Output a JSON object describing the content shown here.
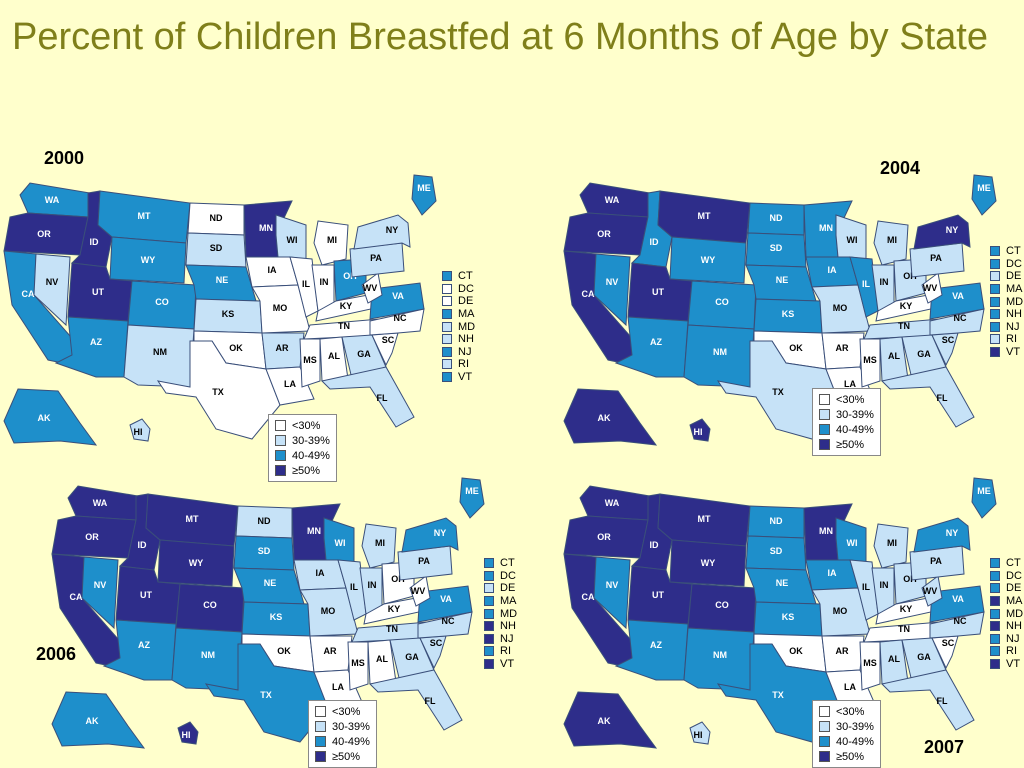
{
  "title": "Percent of Children Breastfed at 6 Months of Age by State",
  "colors": {
    "lt30": "#ffffff",
    "c30_39": "#c6e2f7",
    "c40_49": "#1e8fcb",
    "ge50": "#2e2d8a",
    "border": "#3a4f7a",
    "background": "#ffffcc",
    "title": "#7f7f1a"
  },
  "legend": {
    "items": [
      {
        "label": "<30%",
        "key": "lt30"
      },
      {
        "label": "30-39%",
        "key": "c30_39"
      },
      {
        "label": "40-49%",
        "key": "c40_49"
      },
      {
        "label": "≥50%",
        "key": "ge50"
      }
    ]
  },
  "small_state_labels": [
    "CT",
    "DC",
    "DE",
    "MA",
    "MD",
    "NH",
    "NJ",
    "RI",
    "VT"
  ],
  "state_labels": [
    "WA",
    "OR",
    "CA",
    "NV",
    "ID",
    "MT",
    "WY",
    "UT",
    "AZ",
    "CO",
    "NM",
    "ND",
    "SD",
    "NE",
    "KS",
    "OK",
    "TX",
    "MN",
    "IA",
    "MO",
    "AR",
    "LA",
    "WI",
    "IL",
    "MI",
    "IN",
    "OH",
    "KY",
    "TN",
    "MS",
    "AL",
    "GA",
    "FL",
    "SC",
    "NC",
    "VA",
    "WV",
    "PA",
    "NY",
    "ME",
    "AK",
    "HI"
  ],
  "panels": [
    {
      "year": "2000",
      "states": {
        "WA": "c40_49",
        "OR": "ge50",
        "CA": "c40_49",
        "NV": "c30_39",
        "ID": "ge50",
        "MT": "c40_49",
        "WY": "c40_49",
        "UT": "ge50",
        "AZ": "c40_49",
        "CO": "c40_49",
        "NM": "c30_39",
        "ND": "lt30",
        "SD": "c30_39",
        "NE": "c40_49",
        "KS": "c30_39",
        "OK": "lt30",
        "TX": "lt30",
        "MN": "ge50",
        "IA": "lt30",
        "MO": "lt30",
        "AR": "c30_39",
        "LA": "lt30",
        "WI": "c30_39",
        "IL": "lt30",
        "MI": "lt30",
        "IN": "lt30",
        "OH": "c40_49",
        "KY": "lt30",
        "TN": "lt30",
        "MS": "lt30",
        "AL": "lt30",
        "GA": "c30_39",
        "FL": "c30_39",
        "SC": "lt30",
        "NC": "lt30",
        "VA": "c40_49",
        "WV": "lt30",
        "PA": "c30_39",
        "NY": "c30_39",
        "ME": "c40_49",
        "AK": "c40_49",
        "HI": "c30_39"
      },
      "small": {
        "CT": "c40_49",
        "DC": "lt30",
        "DE": "lt30",
        "MA": "c40_49",
        "MD": "c30_39",
        "NH": "c30_39",
        "NJ": "c40_49",
        "RI": "c30_39",
        "VT": "c40_49"
      }
    },
    {
      "year": "2004",
      "states": {
        "WA": "ge50",
        "OR": "ge50",
        "CA": "ge50",
        "NV": "c40_49",
        "ID": "c40_49",
        "MT": "ge50",
        "WY": "c40_49",
        "UT": "ge50",
        "AZ": "c40_49",
        "CO": "c40_49",
        "NM": "c40_49",
        "ND": "c40_49",
        "SD": "c40_49",
        "NE": "c40_49",
        "KS": "c40_49",
        "OK": "lt30",
        "TX": "c30_39",
        "MN": "c40_49",
        "IA": "c40_49",
        "MO": "c30_39",
        "AR": "lt30",
        "LA": "lt30",
        "WI": "c30_39",
        "IL": "c40_49",
        "MI": "c30_39",
        "IN": "c30_39",
        "OH": "c30_39",
        "KY": "lt30",
        "TN": "c30_39",
        "MS": "lt30",
        "AL": "c30_39",
        "GA": "c30_39",
        "FL": "c30_39",
        "SC": "c30_39",
        "NC": "c30_39",
        "VA": "c40_49",
        "WV": "lt30",
        "PA": "c30_39",
        "NY": "ge50",
        "ME": "c40_49",
        "AK": "ge50",
        "HI": "ge50"
      },
      "small": {
        "CT": "c40_49",
        "DC": "c40_49",
        "DE": "c30_39",
        "MA": "c40_49",
        "MD": "c40_49",
        "NH": "c40_49",
        "NJ": "c40_49",
        "RI": "c30_39",
        "VT": "ge50"
      }
    },
    {
      "year": "2006",
      "states": {
        "WA": "ge50",
        "OR": "ge50",
        "CA": "ge50",
        "NV": "c40_49",
        "ID": "ge50",
        "MT": "ge50",
        "WY": "ge50",
        "UT": "ge50",
        "AZ": "c40_49",
        "CO": "ge50",
        "NM": "c40_49",
        "ND": "c30_39",
        "SD": "c40_49",
        "NE": "c40_49",
        "KS": "c40_49",
        "OK": "lt30",
        "TX": "c40_49",
        "MN": "ge50",
        "IA": "c30_39",
        "MO": "c30_39",
        "AR": "lt30",
        "LA": "lt30",
        "WI": "c40_49",
        "IL": "c30_39",
        "MI": "c30_39",
        "IN": "c30_39",
        "OH": "lt30",
        "KY": "lt30",
        "TN": "c30_39",
        "MS": "lt30",
        "AL": "lt30",
        "GA": "c30_39",
        "FL": "c30_39",
        "SC": "c30_39",
        "NC": "c30_39",
        "VA": "c40_49",
        "WV": "lt30",
        "PA": "c30_39",
        "NY": "c40_49",
        "ME": "c40_49",
        "AK": "c40_49",
        "HI": "ge50"
      },
      "small": {
        "CT": "c40_49",
        "DC": "c40_49",
        "DE": "c30_39",
        "MA": "c40_49",
        "MD": "c40_49",
        "NH": "ge50",
        "NJ": "ge50",
        "RI": "c40_49",
        "VT": "ge50"
      }
    },
    {
      "year": "2007",
      "states": {
        "WA": "ge50",
        "OR": "ge50",
        "CA": "ge50",
        "NV": "c40_49",
        "ID": "ge50",
        "MT": "ge50",
        "WY": "ge50",
        "UT": "ge50",
        "AZ": "c40_49",
        "CO": "ge50",
        "NM": "c40_49",
        "ND": "c40_49",
        "SD": "c40_49",
        "NE": "c40_49",
        "KS": "c40_49",
        "OK": "lt30",
        "TX": "c40_49",
        "MN": "ge50",
        "IA": "c40_49",
        "MO": "c30_39",
        "AR": "lt30",
        "LA": "lt30",
        "WI": "c40_49",
        "IL": "c30_39",
        "MI": "c30_39",
        "IN": "c30_39",
        "OH": "c30_39",
        "KY": "lt30",
        "TN": "lt30",
        "MS": "lt30",
        "AL": "c30_39",
        "GA": "c30_39",
        "FL": "c30_39",
        "SC": "lt30",
        "NC": "c30_39",
        "VA": "c40_49",
        "WV": "c30_39",
        "PA": "c30_39",
        "NY": "c40_49",
        "ME": "c40_49",
        "AK": "ge50",
        "HI": "c30_39"
      },
      "small": {
        "CT": "c40_49",
        "DC": "c40_49",
        "DE": "c40_49",
        "MA": "ge50",
        "MD": "c40_49",
        "NH": "ge50",
        "NJ": "c40_49",
        "RI": "c40_49",
        "VT": "ge50"
      }
    }
  ]
}
